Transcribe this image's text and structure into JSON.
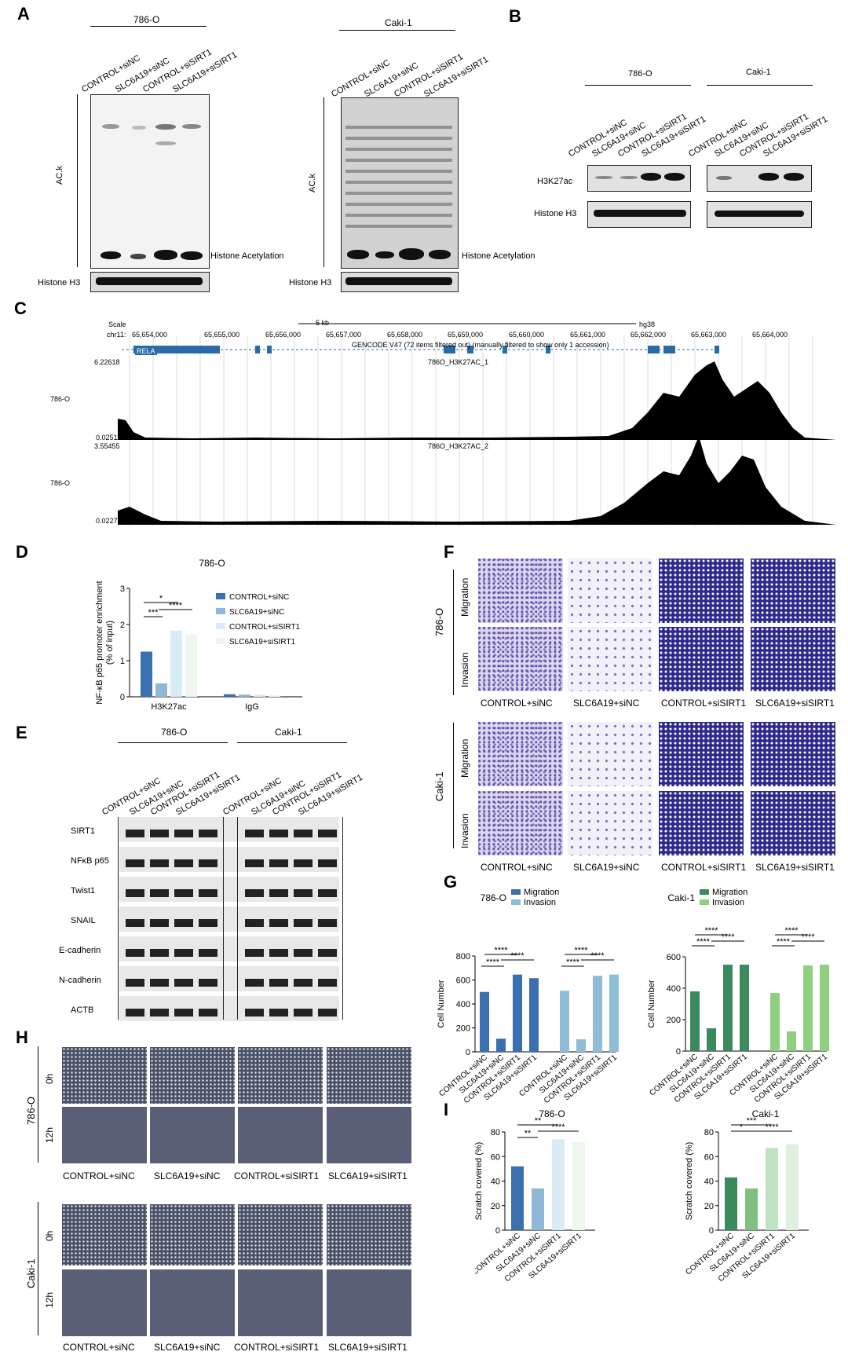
{
  "panels": {
    "A": "A",
    "B": "B",
    "C": "C",
    "D": "D",
    "E": "E",
    "F": "F",
    "G": "G",
    "H": "H",
    "I": "I"
  },
  "lanes4": [
    "CONTROL+siNC",
    "SLC6A19+siNC",
    "CONTROL+siSIRT1",
    "SLC6A19+siSIRT1"
  ],
  "cells": {
    "c786": "786-O",
    "caki": "Caki-1"
  },
  "panelA": {
    "ylabel": "AC.k",
    "acet_label": "Histone Acetylation",
    "h3": "Histone H3"
  },
  "panelB": {
    "rows": [
      "H3K27ac",
      "Histone H3"
    ]
  },
  "panelC": {
    "scale": "Scale",
    "chr": "chr11:",
    "scalebar": "5 kb",
    "genome": "hg38",
    "ticks": [
      "65,654,000",
      "65,655,000",
      "65,656,000",
      "65,657,000",
      "65,658,000",
      "65,659,000",
      "65,660,000",
      "65,661,000",
      "65,662,000",
      "65,663,000",
      "65,664,000"
    ],
    "gencode": "GENCODE V47 (72 items filtered out) (manually filtered to show only 1 accession)",
    "gene": "RELA",
    "track1": {
      "name": "786O_H3K27AC_1",
      "max": "6.22618",
      "min": "0.02511",
      "label": "786-O"
    },
    "track2": {
      "name": "786O_H3K27AC_2",
      "max": "3.55455",
      "min": "0.02279",
      "label": "786-O"
    }
  },
  "panelE": {
    "rows": [
      "SIRT1",
      "NFκB p65",
      "Twist1",
      "SNAIL",
      "E-cadherin",
      "N-cadherin",
      "ACTB"
    ]
  },
  "panelF": {
    "rows": [
      "Migration",
      "Invasion"
    ]
  },
  "panelH": {
    "times": [
      "0h",
      "12h"
    ]
  },
  "chart_data": [
    {
      "id": "D",
      "type": "bar",
      "title": "786-O",
      "ylabel": "NF-κB p65 promoter enrichment\n(% of input)",
      "ylim": [
        0,
        3
      ],
      "yticks": [
        "0",
        "1",
        "2",
        "3"
      ],
      "categories": [
        "H3K27ac",
        "IgG"
      ],
      "series": [
        {
          "name": "CONTROL+siNC",
          "values": [
            1.25,
            0.07
          ],
          "color": "#3a6fb0"
        },
        {
          "name": "SLC6A19+siNC",
          "values": [
            0.37,
            0.06
          ],
          "color": "#8fb7d6"
        },
        {
          "name": "CONTROL+siSIRT1",
          "values": [
            1.83,
            0.05
          ],
          "color": "#d9ecf6"
        },
        {
          "name": "SLC6A19+siSIRT1",
          "values": [
            1.72,
            0.04
          ],
          "color": "#eef6ee"
        }
      ],
      "sig": [
        "***",
        "*",
        "****"
      ]
    },
    {
      "id": "G1",
      "type": "bar",
      "title": "786-O",
      "legend": [
        "Migration",
        "Invasion"
      ],
      "ylabel": "Cell Number",
      "ylim": [
        0,
        800
      ],
      "yticks": [
        "0",
        "200",
        "400",
        "600",
        "800"
      ],
      "categories": [
        "CONTROL+siNC",
        "SLC6A19+siNC",
        "CONTROL+siSIRT1",
        "SLC6A19+siSIRT1"
      ],
      "series": [
        {
          "name": "Migration",
          "values": [
            500,
            110,
            645,
            615
          ],
          "color": "#3a6fb0"
        },
        {
          "name": "Invasion",
          "values": [
            510,
            105,
            635,
            645
          ],
          "color": "#8fbdd8"
        }
      ],
      "sig": [
        "****",
        "****",
        "****"
      ]
    },
    {
      "id": "G2",
      "type": "bar",
      "title": "Caki-1",
      "legend": [
        "Migration",
        "Invasion"
      ],
      "ylabel": "Cell Number",
      "ylim": [
        0,
        600
      ],
      "yticks": [
        "0",
        "200",
        "400",
        "600"
      ],
      "categories": [
        "CONTROL+siNC",
        "SLC6A19+siNC",
        "CONTROL+siSIRT1",
        "SLC6A19+siSIRT1"
      ],
      "series": [
        {
          "name": "Migration",
          "values": [
            380,
            145,
            550,
            550
          ],
          "color": "#3b8a5e"
        },
        {
          "name": "Invasion",
          "values": [
            370,
            125,
            545,
            550
          ],
          "color": "#8fcf7f"
        }
      ],
      "sig": [
        "****",
        "****",
        "****"
      ]
    },
    {
      "id": "I1",
      "type": "bar",
      "title": "786-O",
      "ylabel": "Scratch covered (%)",
      "ylim": [
        0,
        80
      ],
      "yticks": [
        "0",
        "20",
        "40",
        "60",
        "80"
      ],
      "categories": [
        "CONTROL+siNC",
        "SLC6A19+siNC",
        "CONTROL+siSIRT1",
        "SLC6A19+siSIRT1"
      ],
      "values": [
        52,
        34,
        74,
        72
      ],
      "colors": [
        "#3a6fb0",
        "#8fb7d6",
        "#d9ecf6",
        "#eef6ee"
      ],
      "sig": [
        "**",
        "**",
        "****"
      ]
    },
    {
      "id": "I2",
      "type": "bar",
      "title": "Caki-1",
      "ylabel": "Scratch covered (%)",
      "ylim": [
        0,
        80
      ],
      "yticks": [
        "0",
        "20",
        "40",
        "60",
        "80"
      ],
      "categories": [
        "CONTROL+siNC",
        "SLC6A19+siNC",
        "CONTROL+siSIRT1",
        "SLC6A19+siSIRT1"
      ],
      "values": [
        43,
        34,
        67,
        70
      ],
      "colors": [
        "#3b8a5e",
        "#7fbf80",
        "#bfe3c0",
        "#dff0df"
      ],
      "sig": [
        "*",
        "***",
        "****"
      ]
    }
  ]
}
